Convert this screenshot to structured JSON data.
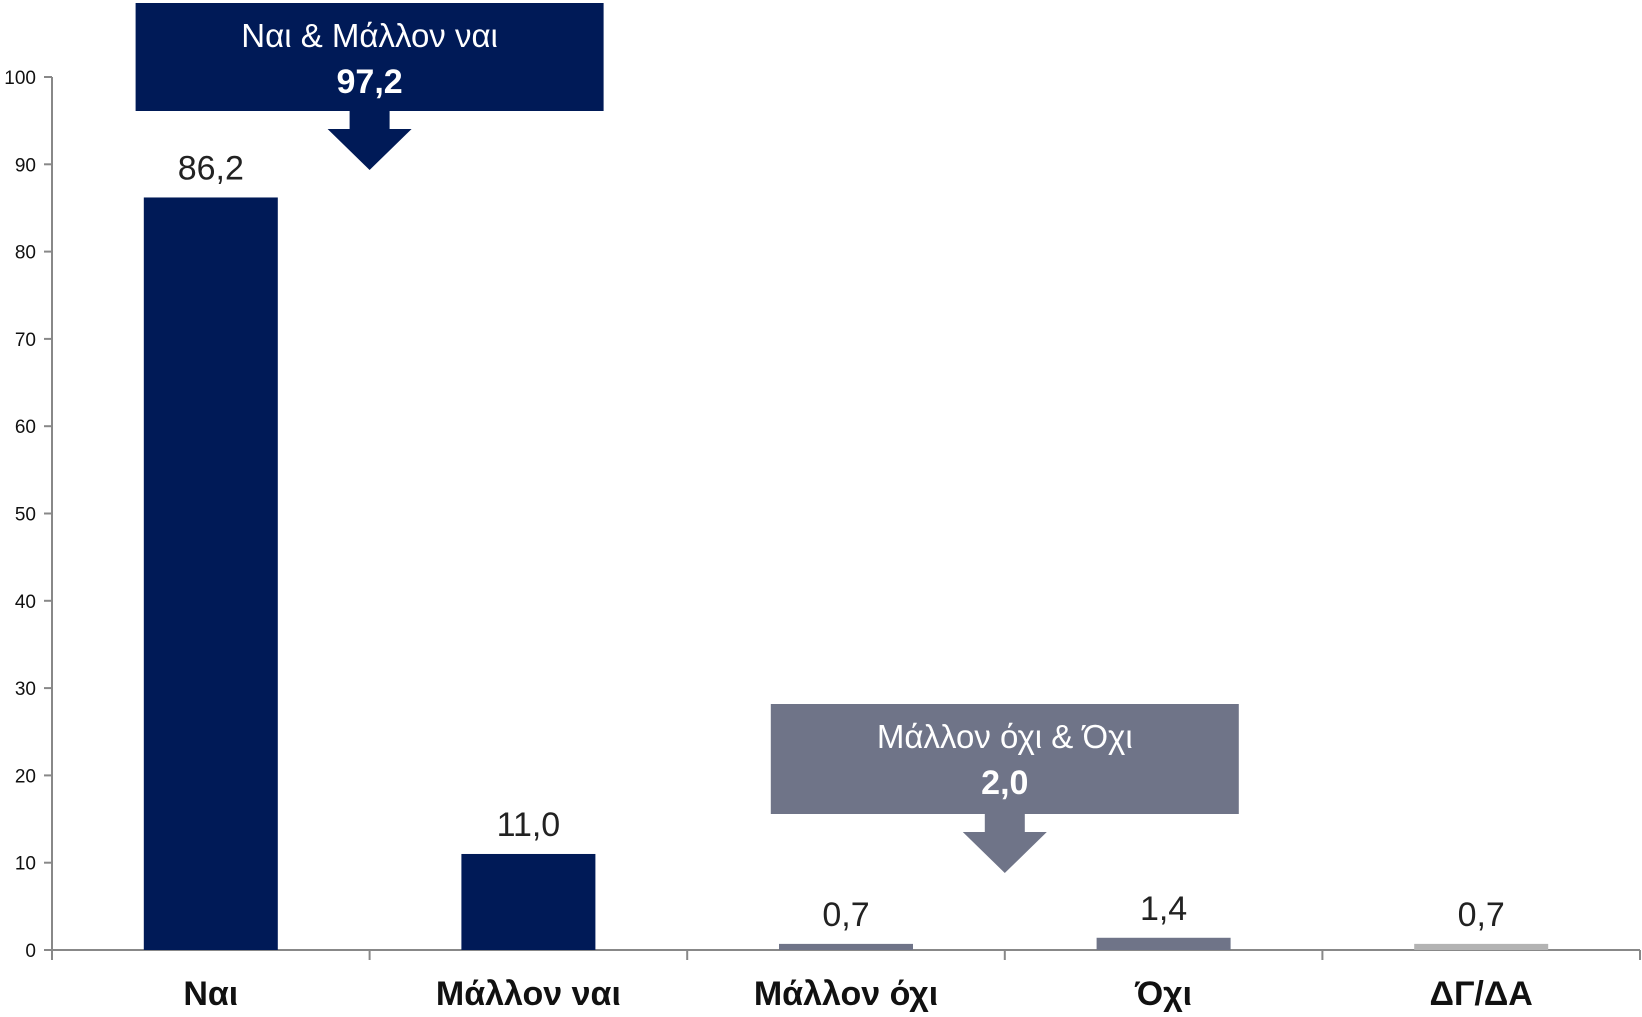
{
  "chart_data": {
    "type": "bar",
    "categories": [
      "Ναι",
      "Μάλλον ναι",
      "Μάλλον όχι",
      "Όχι",
      "ΔΓ/ΔΑ"
    ],
    "values": [
      86.2,
      11.0,
      0.7,
      1.4,
      0.7
    ],
    "value_labels": [
      "86,2",
      "11,0",
      "0,7",
      "1,4",
      "0,7"
    ],
    "bar_colors": [
      "#001a57",
      "#001a57",
      "#6f7488",
      "#6f7488",
      "#b3b3b3"
    ],
    "ylim": [
      0,
      100
    ],
    "yticks": [
      0,
      10,
      20,
      30,
      40,
      50,
      60,
      70,
      80,
      90,
      100
    ],
    "ytick_labels": [
      "0",
      "10",
      "20",
      "30",
      "40",
      "50",
      "60",
      "70",
      "80",
      "90",
      "100"
    ],
    "grid": false,
    "title": "",
    "xlabel": "",
    "ylabel": "",
    "annotations": [
      {
        "title": "Ναι & Μάλλον ναι",
        "value": "97,2",
        "color": "#001a57",
        "categories": [
          "Ναι",
          "Μάλλον ναι"
        ]
      },
      {
        "title": "Μάλλον όχι & Όχι",
        "value": "2,0",
        "color": "#6f7488",
        "categories": [
          "Μάλλον όχι",
          "Όχι"
        ]
      }
    ]
  }
}
